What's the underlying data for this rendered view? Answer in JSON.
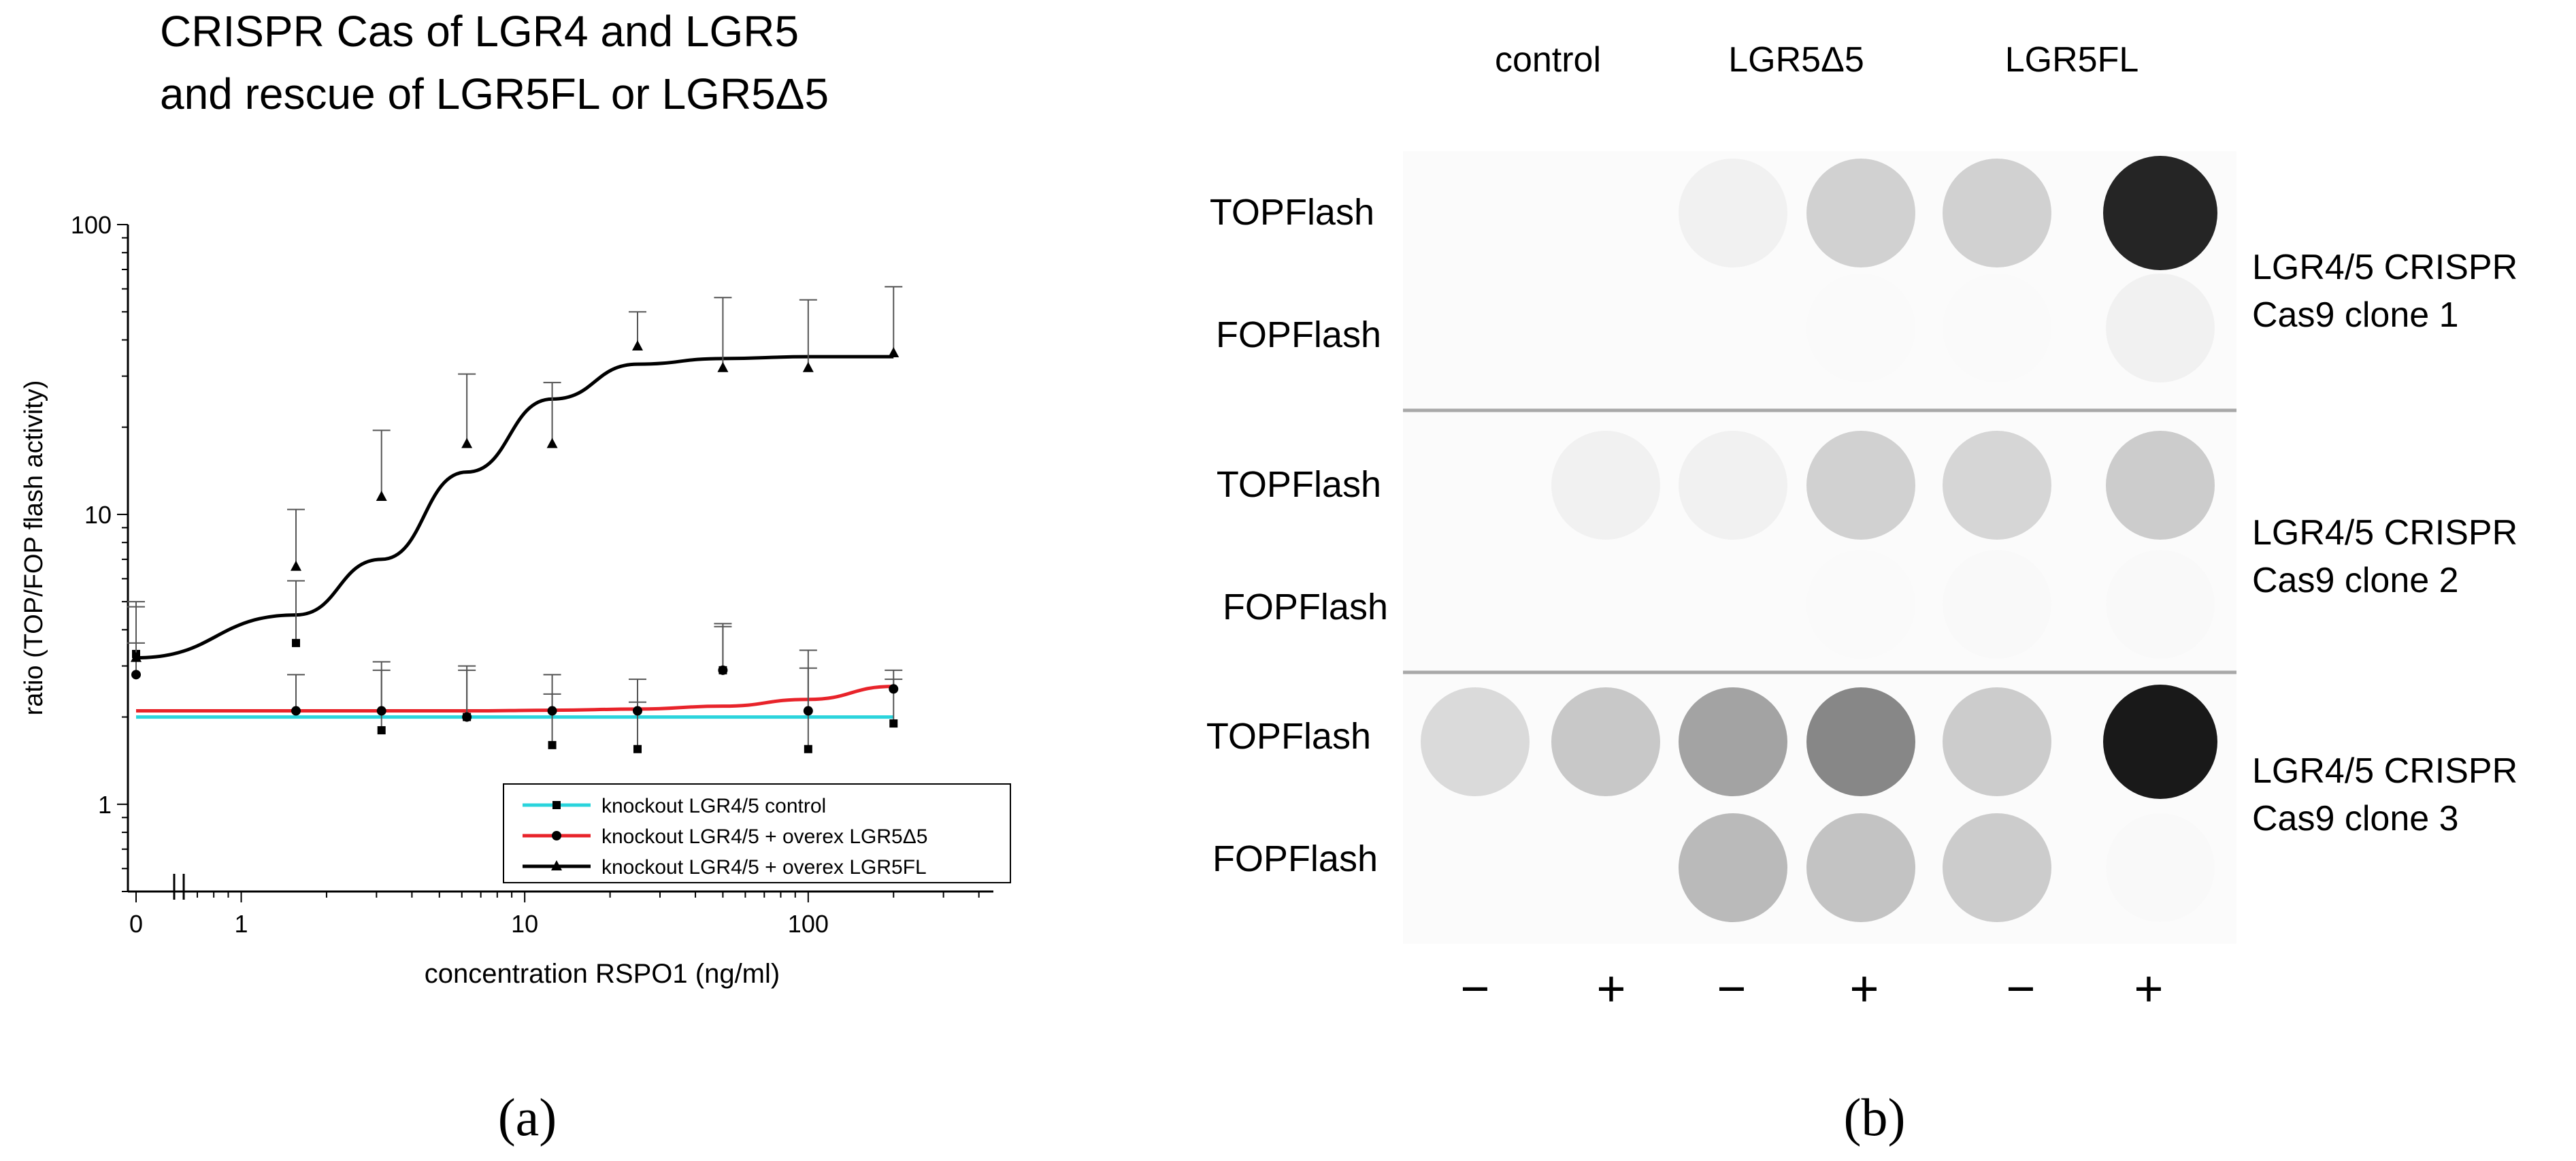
{
  "panel_a": {
    "title_line1": "CRISPR Cas of LGR4 and LGR5",
    "title_line2": "and rescue of LGR5FL or LGR5Δ5",
    "label": "(a)"
  },
  "panel_b": {
    "label": "(b)",
    "column_groups": [
      "control",
      "LGR5Δ5",
      "LGR5FL"
    ],
    "signs": [
      "−",
      "+",
      "−",
      "+",
      "−",
      "+"
    ],
    "row_labels": [
      "TOPFlash",
      "FOPFlash",
      "TOPFlash",
      "FOPFlash",
      "TOPFlash",
      "FOPFlash"
    ],
    "clone_labels": [
      {
        "line1": "LGR4/5 CRISPR",
        "line2": "Cas9  clone 1"
      },
      {
        "line1": "LGR4/5 CRISPR",
        "line2": "Cas9  clone 2"
      },
      {
        "line1": "LGR4/5 CRISPR",
        "line2": "Cas9  clone 3"
      }
    ],
    "spot_intensity": [
      [
        0.0,
        0.0,
        0.06,
        0.2,
        0.2,
        0.95
      ],
      [
        0.0,
        0.0,
        0.0,
        0.02,
        0.02,
        0.06
      ],
      [
        0.0,
        0.06,
        0.06,
        0.2,
        0.18,
        0.22
      ],
      [
        0.0,
        0.0,
        0.0,
        0.02,
        0.04,
        0.04
      ],
      [
        0.16,
        0.24,
        0.4,
        0.52,
        0.22,
        1.0
      ],
      [
        0.0,
        0.0,
        0.3,
        0.26,
        0.22,
        0.04
      ]
    ]
  },
  "chart_data": {
    "type": "scatter",
    "title": "CRISPR Cas of LGR4 and LGR5 and rescue of LGR5FL or LGR5Δ5",
    "xlabel": "concentration  RSPO1 (ng/ml)",
    "ylabel": "ratio (TOP/FOP flash activity)",
    "x_scale": "log",
    "y_scale": "log",
    "xlim": [
      0.7,
      450
    ],
    "ylim": [
      0.5,
      100
    ],
    "x_ticks": [
      "0",
      "1",
      "10",
      "100"
    ],
    "y_ticks": [
      "1",
      "10",
      "100"
    ],
    "legend_position": "bottom-right",
    "series": [
      {
        "name": "knockout LGR4/5 control",
        "color": "#2ad4dc",
        "marker": "square",
        "x": [
          0,
          1.56,
          3.125,
          6.25,
          12.5,
          25,
          50,
          100,
          200
        ],
        "y": [
          3.3,
          3.6,
          1.8,
          2.0,
          1.6,
          1.55,
          2.9,
          1.55,
          1.9
        ],
        "err": [
          1.5,
          2.3,
          1.1,
          0.9,
          0.8,
          0.7,
          1.2,
          1.4,
          0.8
        ],
        "fit_y": [
          2.0,
          2.0,
          2.0,
          2.0,
          2.0,
          2.0,
          2.0,
          2.0,
          2.0
        ]
      },
      {
        "name": "knockout LGR4/5 + overex LGR5Δ5",
        "color": "#e8232a",
        "marker": "circle",
        "x": [
          0,
          1.56,
          3.125,
          6.25,
          12.5,
          25,
          50,
          100,
          200
        ],
        "y": [
          2.8,
          2.1,
          2.1,
          2.0,
          2.1,
          2.1,
          2.9,
          2.1,
          2.5
        ],
        "err": [
          0.8,
          0.7,
          1.0,
          1.0,
          0.7,
          0.6,
          1.3,
          1.3,
          0.4
        ],
        "fit_y": [
          2.1,
          2.1,
          2.1,
          2.1,
          2.11,
          2.13,
          2.18,
          2.3,
          2.55
        ]
      },
      {
        "name": "knockout LGR4/5 + overex LGR5FL",
        "color": "#000000",
        "marker": "triangle",
        "x": [
          0,
          1.56,
          3.125,
          6.25,
          12.5,
          25,
          50,
          100,
          200
        ],
        "y": [
          3.2,
          6.6,
          11.5,
          17.5,
          17.5,
          38,
          32,
          32,
          36
        ],
        "err": [
          1.8,
          3.8,
          8.0,
          13.0,
          11.0,
          12.0,
          24.0,
          23.0,
          25.0
        ],
        "fit_y": [
          3.2,
          4.5,
          7.0,
          14.0,
          25.0,
          33.0,
          34.5,
          35.0,
          35.0
        ]
      }
    ]
  }
}
